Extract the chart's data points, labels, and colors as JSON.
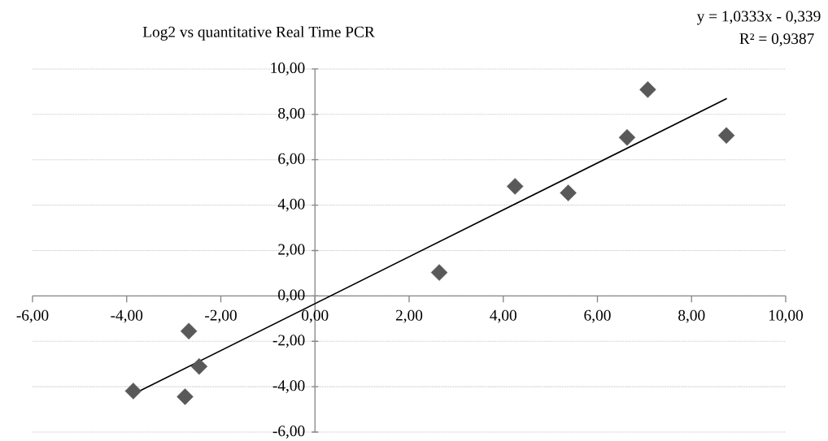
{
  "chart_data": {
    "type": "scatter",
    "title": "Log2 vs quantitative Real Time PCR",
    "annotations": [
      "y = 1,0333x - 0,339",
      "R² = 0,9387"
    ],
    "xlim": [
      -6,
      10
    ],
    "ylim": [
      -6,
      10
    ],
    "xticks": [
      {
        "value": -6,
        "label": "-6,00"
      },
      {
        "value": -4,
        "label": "-4,00"
      },
      {
        "value": -2,
        "label": "-2,00"
      },
      {
        "value": 0,
        "label": "0,00"
      },
      {
        "value": 2,
        "label": "2,00"
      },
      {
        "value": 4,
        "label": "4,00"
      },
      {
        "value": 6,
        "label": "6,00"
      },
      {
        "value": 8,
        "label": "8,00"
      },
      {
        "value": 10,
        "label": "10,00"
      }
    ],
    "yticks": [
      {
        "value": -6,
        "label": "-6,00"
      },
      {
        "value": -4,
        "label": "-4,00"
      },
      {
        "value": -2,
        "label": "-2,00"
      },
      {
        "value": 0,
        "label": "0,00"
      },
      {
        "value": 2,
        "label": "2,00"
      },
      {
        "value": 4,
        "label": "4,00"
      },
      {
        "value": 6,
        "label": "6,00"
      },
      {
        "value": 8,
        "label": "8,00"
      },
      {
        "value": 10,
        "label": "10,00"
      }
    ],
    "grid": "y",
    "series": [
      {
        "type": "scatter",
        "marker": "diamond",
        "color": "#595959",
        "x": [
          -3.86,
          -2.76,
          -2.68,
          -2.46,
          2.64,
          4.25,
          5.38,
          6.63,
          7.07,
          8.74
        ],
        "values": [
          -4.19,
          -4.44,
          -1.55,
          -3.11,
          1.03,
          4.83,
          4.54,
          6.98,
          9.09,
          7.07
        ]
      },
      {
        "type": "line",
        "marker": "none",
        "line_style": "solid",
        "color": "#000000",
        "x": [
          -3.86,
          8.75
        ],
        "values": [
          -4.33,
          8.7
        ]
      }
    ]
  }
}
